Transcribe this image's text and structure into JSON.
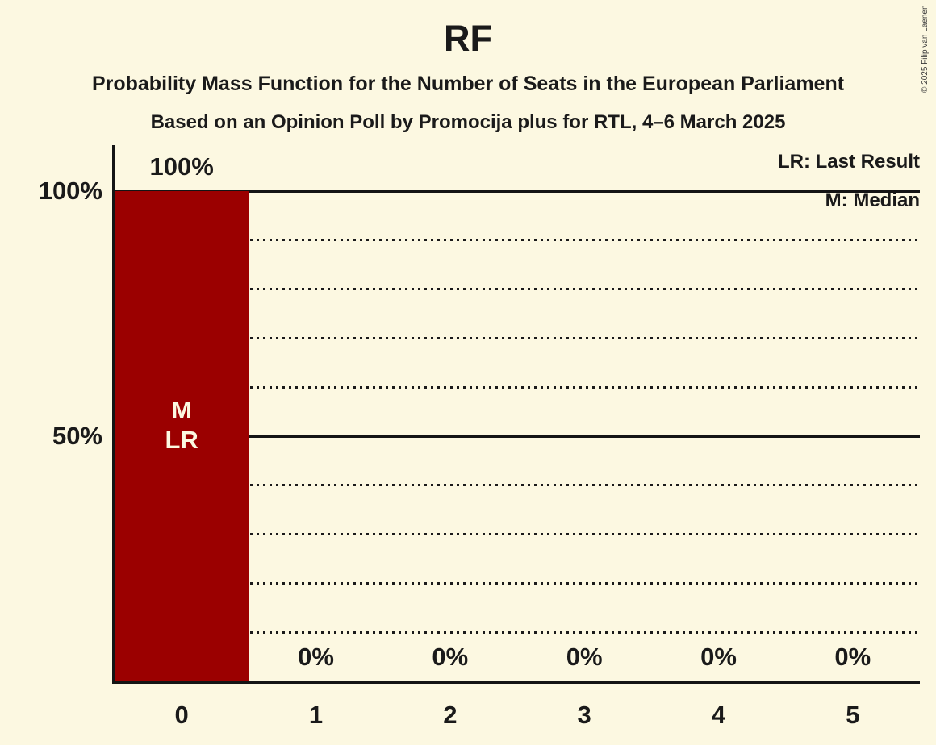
{
  "title": "RF",
  "subtitle1": "Probability Mass Function for the Number of Seats in the European Parliament",
  "subtitle2": "Based on an Opinion Poll by Promocija plus for RTL, 4–6 March 2025",
  "copyright": "© 2025 Filip van Laenen",
  "legend": {
    "lr": "LR: Last Result",
    "m": "M: Median"
  },
  "colors": {
    "background": "#FCF8E1",
    "bar": "#9B0000",
    "text": "#1A1A1A",
    "bar_annotation_text": "#FCF8E1",
    "axis": "#141414"
  },
  "chart_data": {
    "type": "bar",
    "title": "RF",
    "categories": [
      "0",
      "1",
      "2",
      "3",
      "4",
      "5"
    ],
    "values": [
      100,
      0,
      0,
      0,
      0,
      0
    ],
    "value_labels": [
      "100%",
      "0%",
      "0%",
      "0%",
      "0%",
      "0%"
    ],
    "ylim": [
      0,
      100
    ],
    "y_ticks": [
      {
        "label": "100%",
        "pct": 100
      },
      {
        "label": "50%",
        "pct": 50
      }
    ],
    "gridlines": [
      {
        "pct": 100,
        "style": "solid"
      },
      {
        "pct": 90,
        "style": "dotted"
      },
      {
        "pct": 80,
        "style": "dotted"
      },
      {
        "pct": 70,
        "style": "dotted"
      },
      {
        "pct": 60,
        "style": "dotted"
      },
      {
        "pct": 50,
        "style": "solid"
      },
      {
        "pct": 40,
        "style": "dotted"
      },
      {
        "pct": 30,
        "style": "dotted"
      },
      {
        "pct": 20,
        "style": "dotted"
      },
      {
        "pct": 10,
        "style": "dotted"
      }
    ],
    "bar_annotations": [
      {
        "category": "0",
        "lines": [
          "M",
          "LR"
        ]
      }
    ],
    "legend_entries": [
      "LR: Last Result",
      "M: Median"
    ],
    "legend_position": "top-right",
    "grid": true
  }
}
